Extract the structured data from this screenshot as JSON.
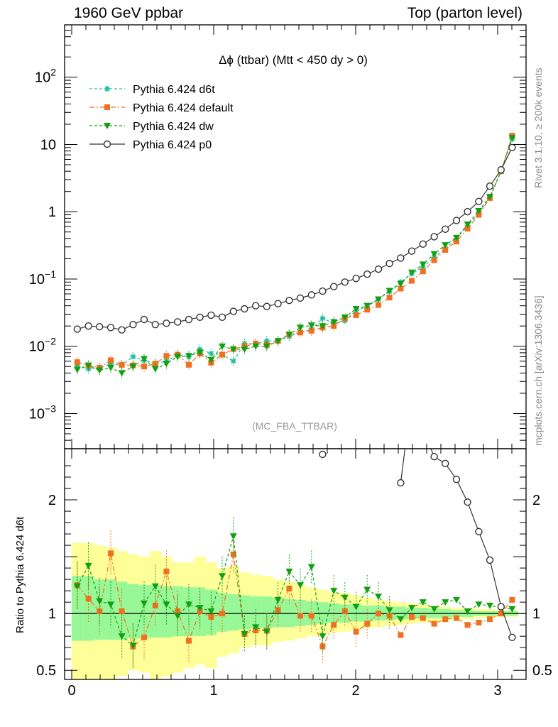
{
  "header": {
    "left": "1960 GeV ppbar",
    "right": "Top (parton level)"
  },
  "side_labels": {
    "top": "Rivet 3.1.10, ≥ 200k events",
    "bottom": "mcplots.cern.ch [arXiv:1306.3436]"
  },
  "chart_data": {
    "type": "line",
    "title": "Δϕ (ttbar) (Mtt < 450 dy > 0)",
    "watermark": "(MC_FBA_TTBAR)",
    "xlabel": "",
    "ylabel": "",
    "xlim": [
      -0.05,
      3.2
    ],
    "ylim": [
      0.0003,
      600
    ],
    "yscale": "log",
    "x_ticks": [
      "0",
      "1",
      "2",
      "3"
    ],
    "y_ticks": [
      "10^-3",
      "10^-2",
      "10^-1",
      "1",
      "10",
      "10^2"
    ],
    "legend_position": "top-left",
    "x": [
      0.039,
      0.118,
      0.196,
      0.275,
      0.353,
      0.432,
      0.51,
      0.589,
      0.667,
      0.746,
      0.825,
      0.903,
      0.982,
      1.06,
      1.139,
      1.217,
      1.296,
      1.374,
      1.453,
      1.532,
      1.61,
      1.689,
      1.767,
      1.846,
      1.924,
      2.003,
      2.081,
      2.16,
      2.238,
      2.317,
      2.395,
      2.474,
      2.553,
      2.631,
      2.71,
      2.788,
      2.867,
      2.945,
      3.024,
      3.102
    ],
    "series": [
      {
        "name": "Pythia 6.424 d6t",
        "color": "#20c0a0",
        "marker": "star",
        "dash": "dashed",
        "values": [
          0.0051,
          0.0046,
          0.0048,
          0.0055,
          0.0052,
          0.007,
          0.0062,
          0.0055,
          0.006,
          0.0075,
          0.007,
          0.009,
          0.0078,
          0.0075,
          0.006,
          0.011,
          0.011,
          0.012,
          0.012,
          0.014,
          0.016,
          0.018,
          0.026,
          0.022,
          0.024,
          0.034,
          0.039,
          0.05,
          0.065,
          0.09,
          0.12,
          0.15,
          0.21,
          0.28,
          0.4,
          0.62,
          0.95,
          1.6,
          4.0,
          12.0
        ]
      },
      {
        "name": "Pythia 6.424 default",
        "color": "#f07020",
        "marker": "square",
        "dash": "dashdot",
        "values": [
          0.0058,
          0.0052,
          0.0048,
          0.0062,
          0.0053,
          0.0052,
          0.005,
          0.0055,
          0.0072,
          0.0075,
          0.0053,
          0.0078,
          0.0057,
          0.0075,
          0.0091,
          0.01,
          0.011,
          0.0105,
          0.012,
          0.015,
          0.016,
          0.017,
          0.019,
          0.02,
          0.026,
          0.029,
          0.035,
          0.041,
          0.053,
          0.072,
          0.094,
          0.13,
          0.19,
          0.27,
          0.36,
          0.56,
          0.9,
          1.6,
          4.0,
          13.5
        ]
      },
      {
        "name": "Pythia 6.424 dw",
        "color": "#10a010",
        "marker": "triangle-down",
        "dash": "dashed",
        "values": [
          0.0045,
          0.0052,
          0.0044,
          0.0048,
          0.004,
          0.005,
          0.0065,
          0.0046,
          0.0055,
          0.007,
          0.0072,
          0.0081,
          0.0063,
          0.01,
          0.009,
          0.009,
          0.01,
          0.01,
          0.012,
          0.015,
          0.019,
          0.0205,
          0.02,
          0.023,
          0.027,
          0.036,
          0.04,
          0.05,
          0.067,
          0.085,
          0.125,
          0.165,
          0.235,
          0.32,
          0.41,
          0.65,
          1.03,
          1.67,
          4.0,
          12.5
        ]
      },
      {
        "name": "Pythia 6.424 p0",
        "color": "#333333",
        "marker": "open-circle",
        "dash": "solid",
        "values": [
          0.018,
          0.02,
          0.0195,
          0.019,
          0.0175,
          0.021,
          0.025,
          0.021,
          0.022,
          0.023,
          0.025,
          0.027,
          0.029,
          0.027,
          0.033,
          0.036,
          0.04,
          0.039,
          0.043,
          0.048,
          0.052,
          0.058,
          0.066,
          0.077,
          0.09,
          0.102,
          0.118,
          0.14,
          0.17,
          0.205,
          0.26,
          0.33,
          0.425,
          0.55,
          0.74,
          1.0,
          1.42,
          2.4,
          4.2,
          9.0
        ]
      }
    ],
    "ratio_panel": {
      "ylabel": "Ratio to Pythia 6.424 d6t",
      "ylim": [
        0.42,
        2.45
      ],
      "y_ticks": [
        "0.5",
        "1",
        "2"
      ],
      "reference": 1,
      "band_inner_upper": [
        1.33,
        1.33,
        1.3,
        1.3,
        1.28,
        1.26,
        1.25,
        1.25,
        1.24,
        1.24,
        1.23,
        1.23,
        1.21,
        1.18,
        1.17,
        1.16,
        1.15,
        1.15,
        1.14,
        1.13,
        1.12,
        1.11,
        1.1,
        1.09,
        1.08,
        1.08,
        1.07,
        1.07,
        1.06,
        1.06,
        1.05,
        1.05,
        1.04,
        1.04,
        1.03,
        1.03,
        1.02,
        1.02,
        1.02,
        1.02
      ],
      "band_inner_lower": [
        0.76,
        0.76,
        0.77,
        0.77,
        0.77,
        0.78,
        0.78,
        0.79,
        0.79,
        0.8,
        0.8,
        0.8,
        0.81,
        0.84,
        0.85,
        0.86,
        0.87,
        0.87,
        0.88,
        0.88,
        0.89,
        0.9,
        0.91,
        0.92,
        0.92,
        0.93,
        0.93,
        0.94,
        0.94,
        0.95,
        0.95,
        0.96,
        0.96,
        0.96,
        0.97,
        0.97,
        0.98,
        0.98,
        0.98,
        0.98
      ],
      "band_outer_upper": [
        1.62,
        1.62,
        1.6,
        1.58,
        1.55,
        1.52,
        1.5,
        1.55,
        1.5,
        1.45,
        1.45,
        1.5,
        1.45,
        1.4,
        1.42,
        1.36,
        1.34,
        1.33,
        1.3,
        1.28,
        1.25,
        1.23,
        1.21,
        1.19,
        1.18,
        1.16,
        1.14,
        1.12,
        1.11,
        1.1,
        1.09,
        1.08,
        1.07,
        1.06,
        1.05,
        1.05,
        1.04,
        1.04,
        1.03,
        1.03
      ],
      "band_outer_lower": [
        0.42,
        0.42,
        0.39,
        0.38,
        0.45,
        0.5,
        0.48,
        0.42,
        0.45,
        0.48,
        0.52,
        0.55,
        0.52,
        0.62,
        0.65,
        0.7,
        0.72,
        0.72,
        0.75,
        0.76,
        0.78,
        0.8,
        0.82,
        0.83,
        0.84,
        0.86,
        0.87,
        0.88,
        0.89,
        0.9,
        0.91,
        0.92,
        0.93,
        0.94,
        0.95,
        0.95,
        0.96,
        0.96,
        0.97,
        0.97
      ],
      "series": [
        {
          "name": "Pythia 6.424 default",
          "color": "#f07020",
          "values": [
            1.25,
            1.13,
            1.02,
            1.53,
            1.02,
            0.71,
            0.79,
            1.07,
            1.37,
            1.02,
            0.76,
            1.02,
            0.97,
            1.0,
            1.52,
            0.82,
            0.85,
            0.85,
            1.03,
            1.22,
            0.98,
            0.98,
            0.71,
            0.9,
            1.02,
            0.84,
            0.91,
            1.0,
            0.98,
            0.81,
            0.97,
            0.96,
            0.91,
            0.95,
            0.96,
            0.9,
            0.92,
            0.95,
            1.0,
            1.12
          ]
        },
        {
          "name": "Pythia 6.424 dw",
          "color": "#10a010",
          "values": [
            1.24,
            1.42,
            1.11,
            1.08,
            0.8,
            0.72,
            1.09,
            1.24,
            1.08,
            0.98,
            1.08,
            1.05,
            1.02,
            1.33,
            1.68,
            0.82,
            0.88,
            0.84,
            1.12,
            1.37,
            1.25,
            1.41,
            0.8,
            1.2,
            1.14,
            1.06,
            1.21,
            1.15,
            1.03,
            0.95,
            1.05,
            1.1,
            1.04,
            1.1,
            1.12,
            1.02,
            1.08,
            1.07,
            1.05,
            1.04
          ]
        },
        {
          "name": "Pythia 6.424 p0",
          "color": "#333333",
          "values": [
            null,
            null,
            null,
            null,
            null,
            null,
            null,
            null,
            null,
            null,
            null,
            null,
            null,
            null,
            null,
            null,
            null,
            null,
            null,
            null,
            null,
            null,
            2.4,
            null,
            null,
            null,
            null,
            null,
            null,
            2.15,
            2.92,
            2.62,
            2.38,
            2.32,
            2.18,
            1.98,
            1.72,
            1.47,
            1.06,
            0.79
          ]
        }
      ]
    }
  }
}
